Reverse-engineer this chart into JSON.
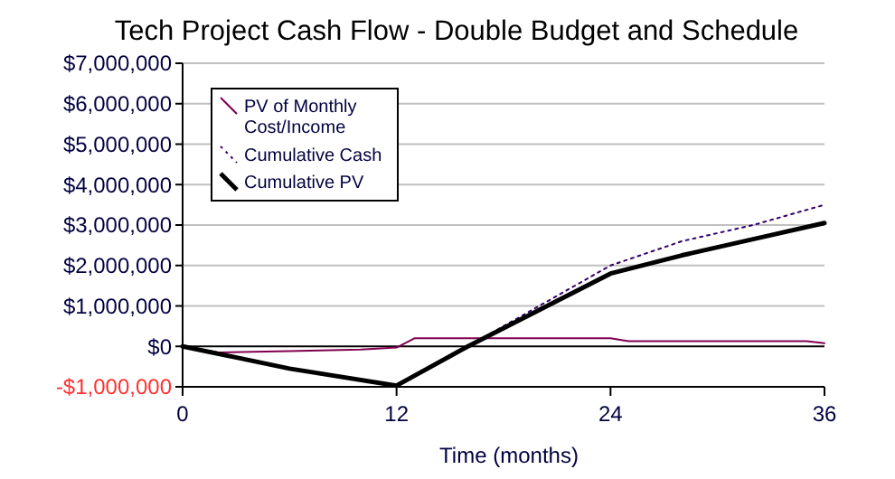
{
  "chart_data": {
    "type": "line",
    "title": "Tech Project Cash Flow - Double Budget and Schedule",
    "xlabel": "Time (months)",
    "xlim": [
      0,
      36
    ],
    "xticks": [
      0,
      12,
      24,
      36
    ],
    "ylim": [
      -1000000,
      7000000
    ],
    "yticks": [
      {
        "value": -1000000,
        "label": "-$1,000,000"
      },
      {
        "value": 0,
        "label": "$0"
      },
      {
        "value": 1000000,
        "label": "$1,000,000"
      },
      {
        "value": 2000000,
        "label": "$2,000,000"
      },
      {
        "value": 3000000,
        "label": "$3,000,000"
      },
      {
        "value": 4000000,
        "label": "$4,000,000"
      },
      {
        "value": 5000000,
        "label": "$5,000,000"
      },
      {
        "value": 6000000,
        "label": "$6,000,000"
      },
      {
        "value": 7000000,
        "label": "$7,000,000"
      }
    ],
    "grid": "y",
    "legend": "top left",
    "series": [
      {
        "name": "PV of Monthly Cost/Income",
        "color": "#800050",
        "line_style": "solid",
        "x": [
          0,
          2,
          6,
          10,
          12,
          13,
          24,
          25,
          35,
          36
        ],
        "values": [
          0,
          -150000,
          -120000,
          -80000,
          -30000,
          200000,
          200000,
          130000,
          130000,
          80000
        ]
      },
      {
        "name": "Cumulative Cash",
        "color": "#330066",
        "line_style": "dotted",
        "x": [
          12,
          16,
          20,
          24,
          28,
          32,
          36
        ],
        "values": [
          -1000000,
          0,
          1000000,
          2000000,
          2600000,
          3000000,
          3500000
        ]
      },
      {
        "name": "Cumulative PV",
        "color": "#000000",
        "line_style": "solid",
        "x": [
          0,
          6,
          12,
          16,
          20,
          24,
          28,
          32,
          36
        ],
        "values": [
          0,
          -550000,
          -970000,
          0,
          900000,
          1800000,
          2250000,
          2650000,
          3050000
        ]
      }
    ]
  }
}
